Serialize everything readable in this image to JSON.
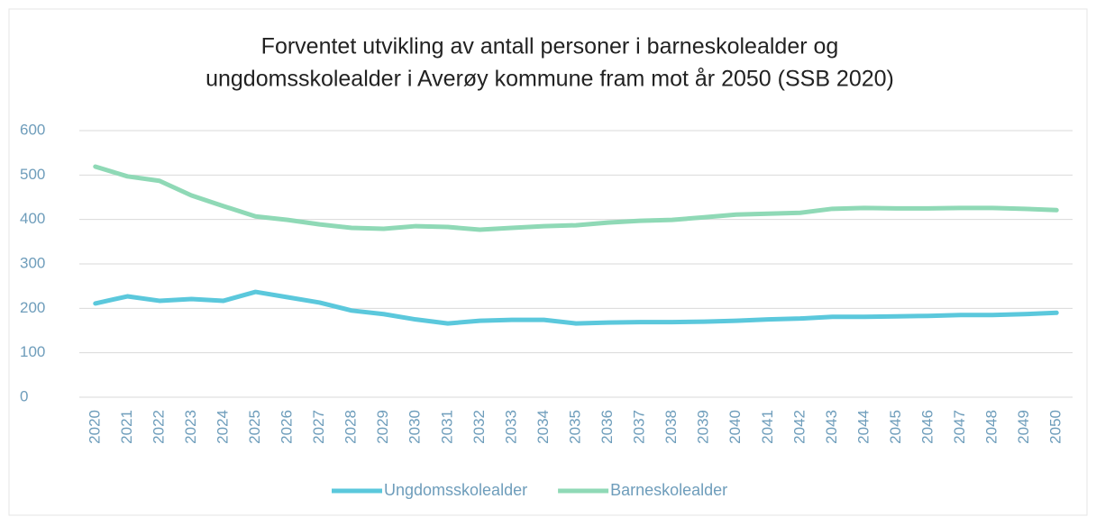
{
  "chart_data": {
    "type": "line",
    "title": [
      "Forventet utvikling av antall personer i barneskolealder og",
      "ungdomsskolealder i Averøy kommune fram mot år 2050 (SSB 2020)"
    ],
    "categories": [
      "2020",
      "2021",
      "2022",
      "2023",
      "2024",
      "2025",
      "2026",
      "2027",
      "2028",
      "2029",
      "2030",
      "2031",
      "2032",
      "2033",
      "2034",
      "2035",
      "2036",
      "2037",
      "2038",
      "2039",
      "2040",
      "2041",
      "2042",
      "2043",
      "2044",
      "2045",
      "2046",
      "2047",
      "2048",
      "2049",
      "2050"
    ],
    "series": [
      {
        "name": "Ungdomsskolealder",
        "color": "#5bc8dc",
        "values": [
          211,
          227,
          217,
          221,
          217,
          237,
          225,
          213,
          195,
          187,
          175,
          166,
          172,
          174,
          174,
          166,
          168,
          169,
          169,
          170,
          172,
          175,
          177,
          181,
          181,
          182,
          183,
          185,
          185,
          187,
          190
        ]
      },
      {
        "name": "Barneskolealder",
        "color": "#8fd9b6",
        "values": [
          519,
          497,
          487,
          454,
          430,
          407,
          399,
          389,
          381,
          379,
          385,
          383,
          377,
          381,
          385,
          387,
          393,
          397,
          399,
          405,
          411,
          413,
          415,
          424,
          426,
          425,
          425,
          426,
          426,
          424,
          421
        ]
      }
    ],
    "ylim": [
      0,
      600
    ],
    "yticks": [
      0,
      100,
      200,
      300,
      400,
      500,
      600
    ],
    "grid": true,
    "legend": "bottom"
  }
}
